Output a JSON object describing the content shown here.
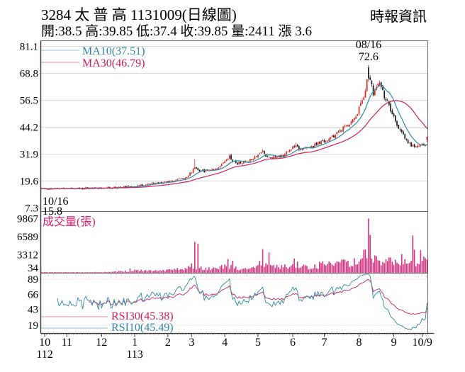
{
  "header": {
    "title": "3284 太 普 高 1131009(日線圖)",
    "source": "時報資訊",
    "quote_line": "開:38.5 高:39.85 低:37.4 收:39.85 量:2411 漲 3.6"
  },
  "colors": {
    "up": "#d7261c",
    "down": "#161616",
    "ma10": "#2f87a8",
    "ma30": "#c9215c",
    "volume_bar": "#d6317f",
    "volume_label": "#d5216e",
    "grid": "#cccccc",
    "border": "#666666",
    "axis": "#444444",
    "text": "#000000",
    "dotted_guide": "#e49ab2"
  },
  "chart_data": {
    "type": "candlestick",
    "title": "3284 太普高 1131009 日線圖",
    "bars": 245,
    "seed": 11,
    "panes": {
      "price": {
        "yticks": [
          81.1,
          68.8,
          56.5,
          44.2,
          31.9,
          19.6,
          7.3
        ],
        "legend": [
          {
            "label": "MA10(37.51)",
            "color": "#2f87a8"
          },
          {
            "label": "MA30(46.79)",
            "color": "#c9215c"
          }
        ],
        "annotations": {
          "peak_date": "08/16",
          "peak_value": "72.6",
          "start_date": "10/16",
          "start_value": "15.8"
        }
      },
      "volume": {
        "label": "成交量(張)",
        "yticks": [
          9867,
          6589,
          3312,
          34
        ]
      },
      "rsi": {
        "yticks": [
          89,
          66,
          43,
          19
        ],
        "legend": [
          {
            "label": "RSI30(45.38)",
            "color": "#c9215c"
          },
          {
            "label": "RSI10(45.49)",
            "color": "#2f87a8"
          }
        ]
      }
    },
    "x_axis": {
      "labels": [
        {
          "text": "10",
          "idx": 2
        },
        {
          "text": "11",
          "idx": 16
        },
        {
          "text": "12",
          "idx": 38
        },
        {
          "text": "1",
          "idx": 59
        },
        {
          "text": "2",
          "idx": 80
        },
        {
          "text": "3",
          "idx": 95
        },
        {
          "text": "4",
          "idx": 116
        },
        {
          "text": "5",
          "idx": 137
        },
        {
          "text": "6",
          "idx": 159
        },
        {
          "text": "7",
          "idx": 179
        },
        {
          "text": "8",
          "idx": 201
        },
        {
          "text": "9",
          "idx": 223
        },
        {
          "text": "10/9",
          "idx": 241
        }
      ],
      "year_labels": [
        {
          "text": "112",
          "idx": 2
        },
        {
          "text": "113",
          "idx": 59
        }
      ]
    },
    "peak": {
      "idx": 207,
      "high": 72.6
    },
    "price_anchors": [
      [
        0,
        16.0
      ],
      [
        10,
        16.1
      ],
      [
        20,
        16.2
      ],
      [
        33,
        16.4
      ],
      [
        45,
        16.6
      ],
      [
        54,
        16.9
      ],
      [
        62,
        17.6
      ],
      [
        70,
        18.4
      ],
      [
        75,
        18.8
      ],
      [
        82,
        19.8
      ],
      [
        88,
        20.6
      ],
      [
        92,
        21.5
      ],
      [
        95,
        23.8
      ],
      [
        97,
        26.0
      ],
      [
        99,
        24.8
      ],
      [
        103,
        24.2
      ],
      [
        107,
        24.8
      ],
      [
        111,
        25.6
      ],
      [
        114,
        27.2
      ],
      [
        117,
        29.8
      ],
      [
        119,
        31.0
      ],
      [
        121,
        28.8
      ],
      [
        124,
        27.6
      ],
      [
        128,
        28.2
      ],
      [
        131,
        28.8
      ],
      [
        134,
        30.2
      ],
      [
        138,
        32.2
      ],
      [
        140,
        33.2
      ],
      [
        142,
        31.2
      ],
      [
        146,
        30.4
      ],
      [
        150,
        30.8
      ],
      [
        153,
        31.6
      ],
      [
        156,
        33.0
      ],
      [
        159,
        35.2
      ],
      [
        161,
        36.4
      ],
      [
        163,
        34.6
      ],
      [
        166,
        34.2
      ],
      [
        169,
        34.8
      ],
      [
        172,
        35.6
      ],
      [
        175,
        36.8
      ],
      [
        178,
        37.6
      ],
      [
        181,
        38.4
      ],
      [
        184,
        39.6
      ],
      [
        187,
        41.2
      ],
      [
        190,
        43.0
      ],
      [
        193,
        44.8
      ],
      [
        196,
        46.5
      ],
      [
        198,
        48.5
      ],
      [
        200,
        51.0
      ],
      [
        202,
        54.5
      ],
      [
        204,
        59.0
      ],
      [
        206,
        65.0
      ],
      [
        207,
        70.0
      ],
      [
        208,
        66.0
      ],
      [
        209,
        62.5
      ],
      [
        210,
        59.5
      ],
      [
        212,
        62.5
      ],
      [
        214,
        64.0
      ],
      [
        216,
        60.0
      ],
      [
        218,
        57.0
      ],
      [
        220,
        53.5
      ],
      [
        222,
        50.0
      ],
      [
        224,
        46.5
      ],
      [
        226,
        44.0
      ],
      [
        228,
        41.5
      ],
      [
        230,
        39.0
      ],
      [
        232,
        37.0
      ],
      [
        234,
        36.0
      ],
      [
        236,
        35.2
      ],
      [
        238,
        35.8
      ],
      [
        240,
        36.4
      ],
      [
        242,
        36.0
      ],
      [
        243,
        36.25
      ],
      [
        244,
        39.85
      ]
    ],
    "bar_overrides": {
      "0": {
        "o": 16.25,
        "h": 16.45,
        "l": 15.8,
        "c": 16.05
      },
      "97": {
        "h": 29.6
      },
      "119": {
        "h": 31.8
      },
      "140": {
        "h": 34.2
      },
      "161": {
        "h": 37.2
      },
      "207": {
        "o": 71.5,
        "h": 72.6,
        "l": 65.0,
        "c": 66.5
      },
      "243": {
        "c": 36.25
      },
      "244": {
        "o": 38.5,
        "h": 39.85,
        "l": 37.4,
        "c": 39.85
      }
    },
    "volume_anchors": [
      [
        0,
        110
      ],
      [
        20,
        95
      ],
      [
        40,
        130
      ],
      [
        54,
        300
      ],
      [
        60,
        420
      ],
      [
        70,
        340
      ],
      [
        80,
        460
      ],
      [
        90,
        750
      ],
      [
        95,
        1400
      ],
      [
        100,
        950
      ],
      [
        105,
        820
      ],
      [
        110,
        720
      ],
      [
        115,
        1100
      ],
      [
        120,
        1000
      ],
      [
        125,
        650
      ],
      [
        130,
        820
      ],
      [
        135,
        1250
      ],
      [
        140,
        1800
      ],
      [
        145,
        1300
      ],
      [
        150,
        950
      ],
      [
        155,
        1150
      ],
      [
        160,
        1650
      ],
      [
        165,
        1150
      ],
      [
        170,
        1050
      ],
      [
        175,
        1350
      ],
      [
        180,
        1550
      ],
      [
        185,
        1450
      ],
      [
        190,
        1750
      ],
      [
        195,
        1650
      ],
      [
        200,
        2250
      ],
      [
        203,
        2650
      ],
      [
        206,
        3200
      ],
      [
        210,
        2400
      ],
      [
        214,
        2000
      ],
      [
        218,
        1850
      ],
      [
        222,
        2100
      ],
      [
        226,
        2000
      ],
      [
        230,
        1750
      ],
      [
        234,
        1550
      ],
      [
        238,
        1350
      ],
      [
        241,
        2600
      ],
      [
        244,
        2411
      ]
    ],
    "volume_spikes": {
      "56": 800,
      "97": 5600,
      "99": 5300,
      "118": 2500,
      "121": 2200,
      "140": 4300,
      "144": 3700,
      "160": 2600,
      "204": 4200,
      "207": 9867,
      "208": 6900,
      "212": 3000,
      "220": 2800,
      "228": 3400,
      "235": 6800,
      "236": 4200,
      "240": 4100,
      "244": 2411
    },
    "last_bar": {
      "open": 38.5,
      "high": 39.85,
      "low": 37.4,
      "close": 39.85,
      "volume": 2411,
      "change": 3.6
    }
  }
}
